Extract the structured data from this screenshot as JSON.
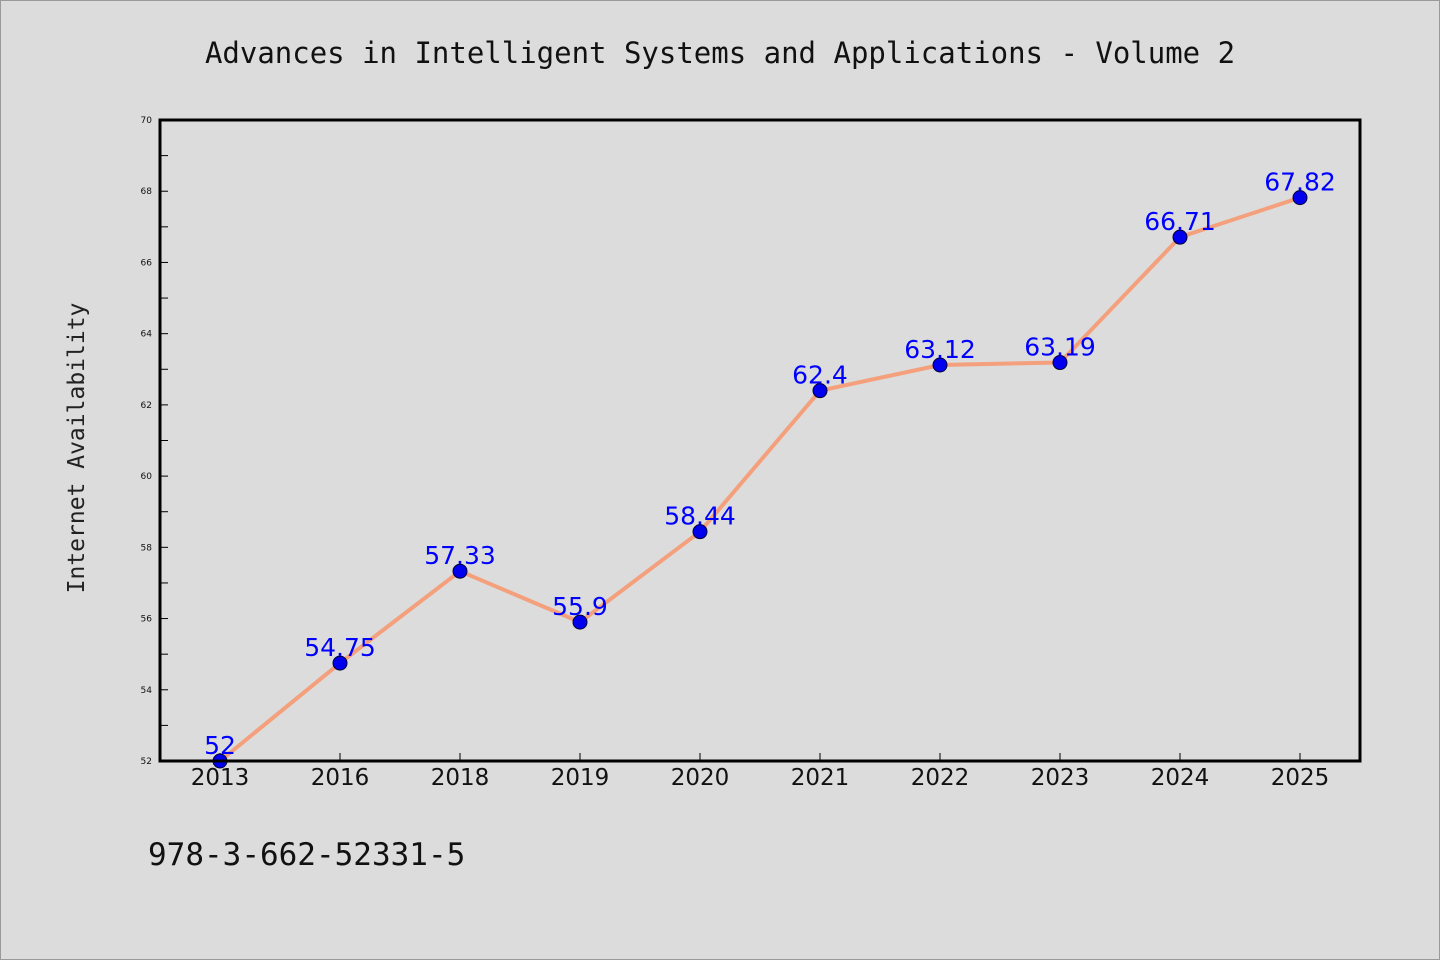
{
  "chart_data": {
    "type": "line",
    "title": "Advances in Intelligent Systems and Applications - Volume 2",
    "xlabel": "",
    "ylabel": "Internet Availability",
    "categories": [
      "2013",
      "2016",
      "2018",
      "2019",
      "2020",
      "2021",
      "2022",
      "2023",
      "2024",
      "2025"
    ],
    "values": [
      52,
      54.75,
      57.33,
      55.9,
      58.44,
      62.4,
      63.12,
      63.19,
      66.71,
      67.82
    ],
    "data_labels": [
      "52",
      "54.75",
      "57.33",
      "55.9",
      "58.44",
      "62.4",
      "63.12",
      "63.19",
      "66.71",
      "67.82"
    ],
    "ylim": [
      52,
      70
    ],
    "y_ticks": [
      "52",
      "54",
      "56",
      "58",
      "60",
      "62",
      "64",
      "66",
      "68",
      "70"
    ],
    "grid": false,
    "legend": "none",
    "line_color": "#f4a07c",
    "marker_color": "#0000ee",
    "label_color": "#0000ff"
  },
  "footer": {
    "code": "978-3-662-52331-5"
  }
}
